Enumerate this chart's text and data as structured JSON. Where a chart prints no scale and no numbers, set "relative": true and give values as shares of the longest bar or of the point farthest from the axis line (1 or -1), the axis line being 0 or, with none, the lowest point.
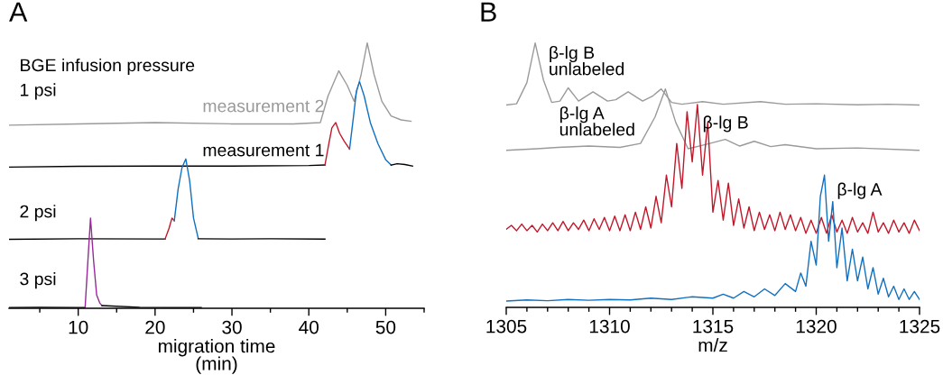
{
  "chart_data": [
    {
      "type": "line",
      "title": "A",
      "xlabel": "migration time\n(min)",
      "relative": true,
      "tick_labels": "x",
      "xlim": [
        1,
        55
      ],
      "xticks": [
        {
          "value": 5,
          "label": null
        },
        10,
        {
          "value": 15,
          "label": null
        },
        20,
        {
          "value": 25,
          "label": null
        },
        30,
        {
          "value": 35,
          "label": null
        },
        40,
        {
          "value": 45,
          "label": null
        },
        50,
        {
          "value": 55,
          "label": null
        }
      ],
      "series": [
        {
          "color": "#9a9a9a",
          "x": [
            1,
            10,
            20,
            30,
            38,
            41.5,
            42.5,
            43.9,
            45,
            45.9,
            46.8,
            47.6,
            48.5,
            49.5,
            50.7,
            52,
            53.3
          ],
          "values": [
            0.69,
            0.695,
            0.7,
            0.695,
            0.695,
            0.7,
            0.8,
            0.895,
            0.84,
            0.78,
            0.88,
            1.0,
            0.88,
            0.78,
            0.725,
            0.71,
            0.705
          ]
        },
        {
          "color": "#000000",
          "x": [
            1,
            10,
            20,
            30,
            40,
            42.1
          ],
          "values": [
            0.532,
            0.535,
            0.536,
            0.536,
            0.538,
            0.54
          ]
        },
        {
          "color": "#c0182b",
          "x": [
            42.1,
            42.6,
            43.0,
            43.5,
            44.0,
            44.6,
            45.3
          ],
          "values": [
            0.54,
            0.62,
            0.68,
            0.7,
            0.66,
            0.63,
            0.6
          ]
        },
        {
          "color": "#1170bf",
          "x": [
            45.3,
            45.8,
            46.2,
            46.6,
            47.2,
            48.0,
            49.0,
            50.0,
            50.7
          ],
          "values": [
            0.6,
            0.72,
            0.82,
            0.854,
            0.8,
            0.7,
            0.62,
            0.56,
            0.54
          ]
        },
        {
          "color": "#000000",
          "x": [
            50.7,
            51.5,
            52.5,
            53.5
          ],
          "values": [
            0.54,
            0.545,
            0.542,
            0.536
          ]
        },
        {
          "color": "#000000",
          "x": [
            1,
            10,
            20,
            21.3
          ],
          "values": [
            0.26,
            0.262,
            0.261,
            0.261
          ]
        },
        {
          "color": "#c0182b",
          "x": [
            21.3,
            21.8,
            22.2,
            22.5
          ],
          "values": [
            0.261,
            0.3,
            0.34,
            0.33
          ]
        },
        {
          "color": "#1170bf",
          "x": [
            22.5,
            23.0,
            23.5,
            24.0,
            24.5,
            25.0,
            25.6
          ],
          "values": [
            0.33,
            0.45,
            0.53,
            0.563,
            0.48,
            0.34,
            0.265
          ]
        },
        {
          "color": "#000000",
          "x": [
            25.6,
            30,
            35,
            42.1
          ],
          "values": [
            0.262,
            0.261,
            0.262,
            0.261
          ]
        },
        {
          "color": "#000000",
          "x": [
            1,
            5,
            10,
            10.9
          ],
          "values": [
            0.003,
            0.004,
            0.003,
            0.003
          ]
        },
        {
          "color": "#962a96",
          "x": [
            10.9,
            11.2,
            11.6,
            12.0,
            12.4,
            12.8,
            13.1
          ],
          "values": [
            0.003,
            0.15,
            0.34,
            0.18,
            0.05,
            0.02,
            0.01
          ]
        },
        {
          "color": "#000000",
          "x": [
            13.1,
            18,
            22,
            26
          ],
          "values": [
            0.01,
            0.004,
            0.003,
            0.003
          ]
        }
      ],
      "annotations": [
        "BGE infusion pressure",
        "1 psi",
        "2 psi",
        "3 psi",
        "measurement 2",
        "measurement 1"
      ]
    },
    {
      "type": "line",
      "title": "B",
      "xlabel": "m/z",
      "relative": true,
      "tick_labels": "x",
      "xlim": [
        1305,
        1325
      ],
      "xticks": [
        1305,
        {
          "value": 1306,
          "label": null
        },
        {
          "value": 1307,
          "label": null
        },
        {
          "value": 1308,
          "label": null
        },
        {
          "value": 1309,
          "label": null
        },
        1310,
        {
          "value": 1311,
          "label": null
        },
        {
          "value": 1312,
          "label": null
        },
        {
          "value": 1313,
          "label": null
        },
        {
          "value": 1314,
          "label": null
        },
        1315,
        {
          "value": 1316,
          "label": null
        },
        {
          "value": 1317,
          "label": null
        },
        {
          "value": 1318,
          "label": null
        },
        {
          "value": 1319,
          "label": null
        },
        1320,
        {
          "value": 1321,
          "label": null
        },
        {
          "value": 1322,
          "label": null
        },
        {
          "value": 1323,
          "label": null
        },
        {
          "value": 1324,
          "label": null
        },
        1325
      ],
      "series": [
        {
          "color": "#9a9a9a",
          "x": [
            1305,
            1305.5,
            1306.0,
            1306.4,
            1306.8,
            1307.2,
            1307.6,
            1308.0,
            1308.5,
            1309.2,
            1309.9,
            1310.3,
            1310.9,
            1311.6,
            1312.1,
            1312.5,
            1313.0,
            1313.5,
            1314.5,
            1315.5,
            1317.3,
            1318.5,
            1320,
            1322,
            1323.5,
            1325
          ],
          "values": [
            0.765,
            0.77,
            0.85,
            1.0,
            0.86,
            0.775,
            0.78,
            0.83,
            0.78,
            0.815,
            0.78,
            0.785,
            0.815,
            0.78,
            0.8,
            0.826,
            0.775,
            0.768,
            0.778,
            0.768,
            0.778,
            0.768,
            0.77,
            0.766,
            0.768,
            0.765
          ]
        },
        {
          "color": "#9a9a9a",
          "x": [
            1305,
            1306.5,
            1307.5,
            1309,
            1310.5,
            1311.5,
            1312.2,
            1312.7,
            1313.2,
            1313.8,
            1314.6,
            1315.6,
            1316.3,
            1317.0,
            1317.8,
            1318.5,
            1320,
            1322,
            1325
          ],
          "values": [
            0.594,
            0.6,
            0.605,
            0.61,
            0.605,
            0.62,
            0.72,
            0.826,
            0.7,
            0.6,
            0.615,
            0.635,
            0.61,
            0.628,
            0.608,
            0.615,
            0.6,
            0.603,
            0.594
          ]
        },
        {
          "color": "#c0182b",
          "x": [
            1305.0,
            1305.25,
            1305.5,
            1305.75,
            1306.0,
            1306.25,
            1306.5,
            1306.75,
            1307.0,
            1307.25,
            1307.5,
            1307.75,
            1308.0,
            1308.25,
            1308.5,
            1308.75,
            1309.0,
            1309.25,
            1309.5,
            1309.75,
            1310.0,
            1310.25,
            1310.5,
            1310.75,
            1311.0,
            1311.25,
            1311.5,
            1311.75,
            1312.0,
            1312.25,
            1312.5,
            1312.75,
            1313.0,
            1313.25,
            1313.5,
            1313.75,
            1314.0,
            1314.25,
            1314.5,
            1314.75,
            1315.0,
            1315.25,
            1315.5,
            1315.75,
            1316.0,
            1316.25,
            1316.5,
            1316.75,
            1317.0,
            1317.25,
            1317.5,
            1317.75,
            1318.0,
            1318.25,
            1318.5,
            1318.75,
            1319.0,
            1319.25,
            1319.5,
            1319.75,
            1320.0,
            1320.25,
            1320.5,
            1320.75,
            1321.0,
            1321.25,
            1321.5,
            1321.75,
            1322.0,
            1322.25,
            1322.5,
            1322.75,
            1323.0,
            1323.25,
            1323.5,
            1323.75,
            1324.0,
            1324.25,
            1324.5,
            1324.75,
            1325.0
          ],
          "values": [
            0.295,
            0.31,
            0.29,
            0.315,
            0.29,
            0.31,
            0.285,
            0.315,
            0.29,
            0.32,
            0.29,
            0.325,
            0.29,
            0.32,
            0.295,
            0.33,
            0.29,
            0.335,
            0.295,
            0.34,
            0.29,
            0.345,
            0.29,
            0.35,
            0.29,
            0.36,
            0.295,
            0.38,
            0.3,
            0.42,
            0.32,
            0.5,
            0.38,
            0.62,
            0.45,
            0.74,
            0.55,
            0.767,
            0.5,
            0.7,
            0.36,
            0.48,
            0.33,
            0.47,
            0.31,
            0.41,
            0.3,
            0.38,
            0.29,
            0.36,
            0.295,
            0.35,
            0.29,
            0.36,
            0.295,
            0.35,
            0.29,
            0.34,
            0.28,
            0.33,
            0.28,
            0.34,
            0.28,
            0.35,
            0.285,
            0.33,
            0.28,
            0.34,
            0.285,
            0.32,
            0.28,
            0.36,
            0.285,
            0.32,
            0.28,
            0.33,
            0.285,
            0.32,
            0.28,
            0.33,
            0.29
          ]
        },
        {
          "color": "#1170bf",
          "x": [
            1305,
            1306,
            1307,
            1308,
            1309,
            1310,
            1311,
            1312,
            1313,
            1314,
            1315,
            1315.5,
            1316,
            1316.5,
            1317,
            1317.5,
            1318,
            1318.5,
            1319,
            1319.25,
            1319.5,
            1319.75,
            1320.0,
            1320.2,
            1320.4,
            1320.6,
            1320.8,
            1321.0,
            1321.25,
            1321.5,
            1321.75,
            1322.0,
            1322.25,
            1322.5,
            1322.75,
            1323.0,
            1323.25,
            1323.5,
            1323.75,
            1324.0,
            1324.25,
            1324.5,
            1324.75,
            1325.0
          ],
          "values": [
            0.024,
            0.028,
            0.025,
            0.03,
            0.027,
            0.03,
            0.028,
            0.035,
            0.03,
            0.04,
            0.035,
            0.05,
            0.035,
            0.06,
            0.04,
            0.07,
            0.045,
            0.09,
            0.06,
            0.13,
            0.08,
            0.25,
            0.16,
            0.42,
            0.5,
            0.25,
            0.4,
            0.15,
            0.3,
            0.1,
            0.22,
            0.1,
            0.19,
            0.07,
            0.15,
            0.05,
            0.11,
            0.04,
            0.08,
            0.03,
            0.07,
            0.03,
            0.06,
            0.03
          ]
        }
      ],
      "annotations": [
        "β-lg B\nunlabeled",
        "β-lg A\nunlabeled",
        {
          "text": "β-lg B",
          "x": 1314.5,
          "y": 0.663
        },
        {
          "text": "β-lg A",
          "x": 1321.0,
          "y": 0.41
        }
      ]
    }
  ]
}
